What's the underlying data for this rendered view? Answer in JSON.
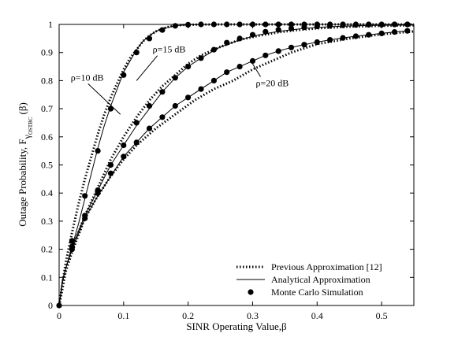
{
  "chart_data": {
    "type": "line",
    "xlabel": "SINR Operating Value,β",
    "ylabel": {
      "main": "Outage Probability, F",
      "sub": "γ",
      "subsub": "OSTBC",
      "tail": "(β)"
    },
    "xlim": [
      0,
      0.55
    ],
    "ylim": [
      0,
      1
    ],
    "xticks": [
      0,
      0.1,
      0.2,
      0.3,
      0.4,
      0.5
    ],
    "xtick_labels": [
      "0",
      "0.1",
      "0.2",
      "0.3",
      "0.4",
      "0.5"
    ],
    "yticks": [
      0,
      0.1,
      0.2,
      0.3,
      0.4,
      0.5,
      0.6,
      0.7,
      0.8,
      0.9,
      1
    ],
    "ytick_labels": [
      "0",
      "0.1",
      "0.2",
      "0.3",
      "0.4",
      "0.5",
      "0.6",
      "0.7",
      "0.8",
      "0.9",
      "1"
    ],
    "grid": false,
    "legend_position": "bottom-right",
    "legend": [
      {
        "label": "Previous Approximation [12]",
        "style": "dotted"
      },
      {
        "label": "Analytical Approximation",
        "style": "solid"
      },
      {
        "label": "Monte Carlo Simulation",
        "style": "marker"
      }
    ],
    "series": [
      {
        "style": "dotted",
        "x": [
          0,
          0.01,
          0.02,
          0.03,
          0.04,
          0.05,
          0.06,
          0.07,
          0.08,
          0.09,
          0.1,
          0.11,
          0.12,
          0.13,
          0.14,
          0.15,
          0.16,
          0.17,
          0.18,
          0.2,
          0.25,
          0.3,
          0.4,
          0.55
        ],
        "y": [
          0,
          0.15,
          0.26,
          0.36,
          0.45,
          0.53,
          0.61,
          0.68,
          0.74,
          0.79,
          0.84,
          0.88,
          0.91,
          0.94,
          0.96,
          0.975,
          0.985,
          0.992,
          0.996,
          0.999,
          1,
          1,
          1,
          1
        ]
      },
      {
        "style": "dotted",
        "x": [
          0,
          0.01,
          0.02,
          0.04,
          0.06,
          0.08,
          0.1,
          0.12,
          0.14,
          0.16,
          0.18,
          0.2,
          0.22,
          0.25,
          0.28,
          0.31,
          0.34,
          0.37,
          0.4,
          0.45,
          0.5,
          0.55
        ],
        "y": [
          0,
          0.12,
          0.2,
          0.32,
          0.42,
          0.52,
          0.6,
          0.67,
          0.73,
          0.78,
          0.82,
          0.86,
          0.89,
          0.92,
          0.945,
          0.96,
          0.972,
          0.98,
          0.986,
          0.992,
          0.995,
          0.997
        ]
      },
      {
        "style": "dotted",
        "x": [
          0,
          0.01,
          0.02,
          0.04,
          0.06,
          0.08,
          0.1,
          0.12,
          0.15,
          0.18,
          0.21,
          0.24,
          0.27,
          0.3,
          0.33,
          0.36,
          0.4,
          0.45,
          0.5,
          0.55
        ],
        "y": [
          0,
          0.12,
          0.19,
          0.31,
          0.39,
          0.46,
          0.52,
          0.57,
          0.63,
          0.68,
          0.73,
          0.77,
          0.8,
          0.84,
          0.87,
          0.9,
          0.93,
          0.95,
          0.965,
          0.975
        ]
      },
      {
        "style": "solid",
        "x": [
          0,
          0.005,
          0.01,
          0.02,
          0.03,
          0.04,
          0.05,
          0.06,
          0.07,
          0.08,
          0.09,
          0.1,
          0.11,
          0.12,
          0.13,
          0.14,
          0.15,
          0.16,
          0.18,
          0.2,
          0.25,
          0.3,
          0.4,
          0.55
        ],
        "y": [
          0,
          0.09,
          0.13,
          0.21,
          0.29,
          0.38,
          0.47,
          0.56,
          0.64,
          0.71,
          0.77,
          0.83,
          0.87,
          0.91,
          0.94,
          0.96,
          0.975,
          0.985,
          0.995,
          0.999,
          1,
          1,
          1,
          1
        ]
      },
      {
        "style": "solid",
        "x": [
          0,
          0.005,
          0.01,
          0.02,
          0.04,
          0.06,
          0.08,
          0.1,
          0.12,
          0.14,
          0.16,
          0.18,
          0.2,
          0.22,
          0.25,
          0.28,
          0.31,
          0.34,
          0.38,
          0.42,
          0.46,
          0.5,
          0.55
        ],
        "y": [
          0,
          0.08,
          0.13,
          0.21,
          0.32,
          0.41,
          0.5,
          0.57,
          0.64,
          0.7,
          0.76,
          0.81,
          0.85,
          0.88,
          0.92,
          0.945,
          0.963,
          0.975,
          0.986,
          0.992,
          0.995,
          0.997,
          0.998
        ]
      },
      {
        "style": "solid",
        "x": [
          0,
          0.005,
          0.01,
          0.02,
          0.04,
          0.06,
          0.08,
          0.1,
          0.12,
          0.14,
          0.16,
          0.18,
          0.2,
          0.22,
          0.24,
          0.26,
          0.28,
          0.3,
          0.32,
          0.34,
          0.36,
          0.38,
          0.4,
          0.42,
          0.44,
          0.46,
          0.48,
          0.5,
          0.52,
          0.54
        ],
        "y": [
          0,
          0.08,
          0.13,
          0.2,
          0.31,
          0.39,
          0.46,
          0.53,
          0.58,
          0.63,
          0.67,
          0.71,
          0.74,
          0.77,
          0.8,
          0.83,
          0.85,
          0.87,
          0.89,
          0.905,
          0.918,
          0.928,
          0.937,
          0.945,
          0.952,
          0.958,
          0.963,
          0.968,
          0.973,
          0.977
        ]
      }
    ],
    "markers": [
      {
        "x": [
          0,
          0.02,
          0.04,
          0.06,
          0.08,
          0.1,
          0.12,
          0.14,
          0.16,
          0.18,
          0.2,
          0.22,
          0.24,
          0.26,
          0.28,
          0.3,
          0.32,
          0.34,
          0.36,
          0.38,
          0.4,
          0.42,
          0.44,
          0.46,
          0.48,
          0.5,
          0.52,
          0.54
        ],
        "y": [
          0,
          0.23,
          0.39,
          0.55,
          0.7,
          0.82,
          0.9,
          0.95,
          0.98,
          0.995,
          0.999,
          1,
          1,
          1,
          1,
          1,
          1,
          1,
          1,
          1,
          1,
          1,
          1,
          1,
          1,
          1,
          1,
          1
        ]
      },
      {
        "x": [
          0.02,
          0.04,
          0.06,
          0.08,
          0.1,
          0.12,
          0.14,
          0.16,
          0.18,
          0.2,
          0.22,
          0.24,
          0.26,
          0.28,
          0.3,
          0.32,
          0.34,
          0.36,
          0.38,
          0.4,
          0.42,
          0.44,
          0.46,
          0.48,
          0.5,
          0.52,
          0.54
        ],
        "y": [
          0.21,
          0.32,
          0.41,
          0.5,
          0.57,
          0.65,
          0.71,
          0.76,
          0.81,
          0.85,
          0.88,
          0.91,
          0.935,
          0.95,
          0.963,
          0.974,
          0.981,
          0.986,
          0.99,
          0.993,
          0.995,
          0.997,
          0.998,
          0.999,
          0.999,
          1,
          1
        ]
      },
      {
        "x": [
          0.02,
          0.04,
          0.06,
          0.08,
          0.1,
          0.12,
          0.14,
          0.16,
          0.18,
          0.2,
          0.22,
          0.24,
          0.26,
          0.28,
          0.3,
          0.32,
          0.34,
          0.36,
          0.38,
          0.4,
          0.42,
          0.44,
          0.46,
          0.48,
          0.5,
          0.52,
          0.54
        ],
        "y": [
          0.2,
          0.31,
          0.4,
          0.47,
          0.53,
          0.58,
          0.63,
          0.67,
          0.71,
          0.74,
          0.77,
          0.8,
          0.83,
          0.85,
          0.87,
          0.89,
          0.905,
          0.918,
          0.928,
          0.937,
          0.945,
          0.952,
          0.958,
          0.963,
          0.968,
          0.973,
          0.977
        ]
      }
    ],
    "annotations": [
      {
        "text": "ρ=10 dB",
        "tx": 0.018,
        "ty": 0.8,
        "ax": 0.095,
        "ay": 0.68
      },
      {
        "text": "ρ=15 dB",
        "tx": 0.145,
        "ty": 0.9,
        "ax": 0.12,
        "ay": 0.8
      },
      {
        "text": "ρ=20 dB",
        "tx": 0.305,
        "ty": 0.78,
        "ax": 0.3,
        "ay": 0.86
      }
    ]
  }
}
